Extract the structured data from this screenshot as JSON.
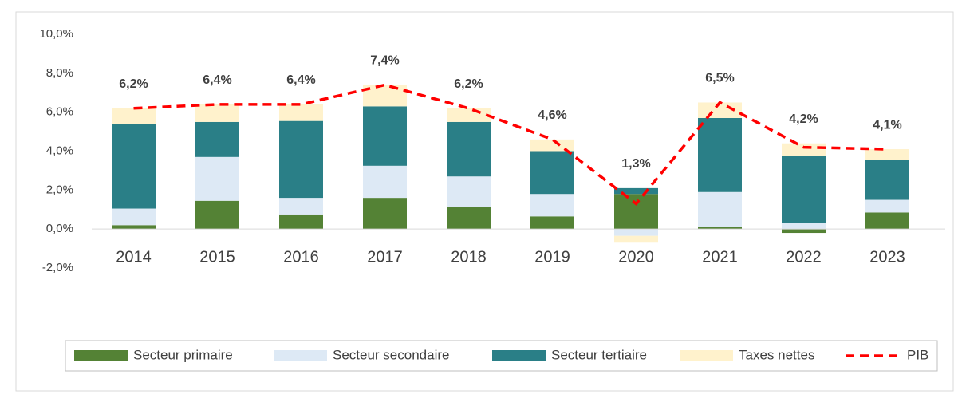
{
  "chart_data": {
    "type": "bar",
    "stacked": true,
    "categories": [
      "2014",
      "2015",
      "2016",
      "2017",
      "2018",
      "2019",
      "2020",
      "2021",
      "2022",
      "2023"
    ],
    "series": [
      {
        "name": "Secteur primaire",
        "color": "#548235",
        "values": [
          0.2,
          1.45,
          0.75,
          1.6,
          1.15,
          0.65,
          1.8,
          0.1,
          -0.2,
          0.85
        ]
      },
      {
        "name": "Secteur secondaire",
        "color": "#dde9f5",
        "values": [
          0.85,
          2.25,
          0.85,
          1.65,
          1.55,
          1.15,
          -0.35,
          1.8,
          0.3,
          0.65
        ]
      },
      {
        "name": "Secteur tertiaire",
        "color": "#2a7f87",
        "values": [
          4.35,
          1.8,
          3.95,
          3.05,
          2.8,
          2.2,
          0.3,
          3.8,
          3.45,
          2.05
        ]
      },
      {
        "name": "Taxes nettes",
        "color": "#fff2cc",
        "values": [
          0.8,
          0.9,
          0.85,
          1.1,
          0.7,
          0.6,
          -0.35,
          0.8,
          0.65,
          0.55
        ]
      },
      {
        "name": "PIB",
        "type": "line",
        "color": "#ff0000",
        "dashed": true,
        "values": [
          6.2,
          6.4,
          6.4,
          7.4,
          6.2,
          4.6,
          1.3,
          6.5,
          4.2,
          4.1
        ],
        "value_labels": [
          "6,2%",
          "6,4%",
          "6,4%",
          "7,4%",
          "6,2%",
          "4,6%",
          "1,3%",
          "6,5%",
          "4,2%",
          "4,1%"
        ]
      }
    ],
    "ylim": [
      -2,
      10
    ],
    "yticks": [
      {
        "value": -2,
        "label": "-2,0%"
      },
      {
        "value": 0,
        "label": "0,0%"
      },
      {
        "value": 2,
        "label": "2,0%"
      },
      {
        "value": 4,
        "label": "4,0%"
      },
      {
        "value": 6,
        "label": "6,0%"
      },
      {
        "value": 8,
        "label": "8,0%"
      },
      {
        "value": 10,
        "label": "10,0%"
      }
    ],
    "legend": "bottom"
  }
}
